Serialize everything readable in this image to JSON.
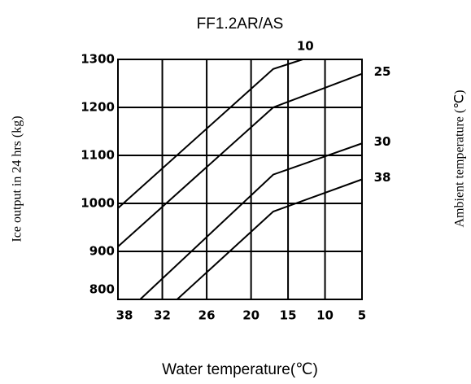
{
  "chart_data": {
    "type": "line",
    "title": "FF1.2AR/AS",
    "x_label": "Water temperature(℃)",
    "y_label": "Ice output in 24 hrs (kg)",
    "y2_label": "Ambient temperature (℃)",
    "xlim": [
      38,
      5
    ],
    "xticks": [
      38,
      32,
      26,
      20,
      15,
      10,
      5
    ],
    "ylim": [
      800,
      1300
    ],
    "yticks": [
      800,
      900,
      1000,
      1100,
      1200,
      1300
    ],
    "grid": true,
    "series": [
      {
        "name": "10",
        "color": "#000000",
        "x": [
          38,
          17,
          13
        ],
        "values": [
          990,
          1280,
          1300
        ]
      },
      {
        "name": "25",
        "color": "#000000",
        "x": [
          38,
          17,
          5
        ],
        "values": [
          910,
          1200,
          1270
        ]
      },
      {
        "name": "30",
        "color": "#000000",
        "x": [
          35,
          17,
          5
        ],
        "values": [
          800,
          1060,
          1125
        ]
      },
      {
        "name": "38",
        "color": "#000000",
        "x": [
          30,
          17,
          5
        ],
        "values": [
          800,
          983,
          1050
        ]
      }
    ]
  }
}
